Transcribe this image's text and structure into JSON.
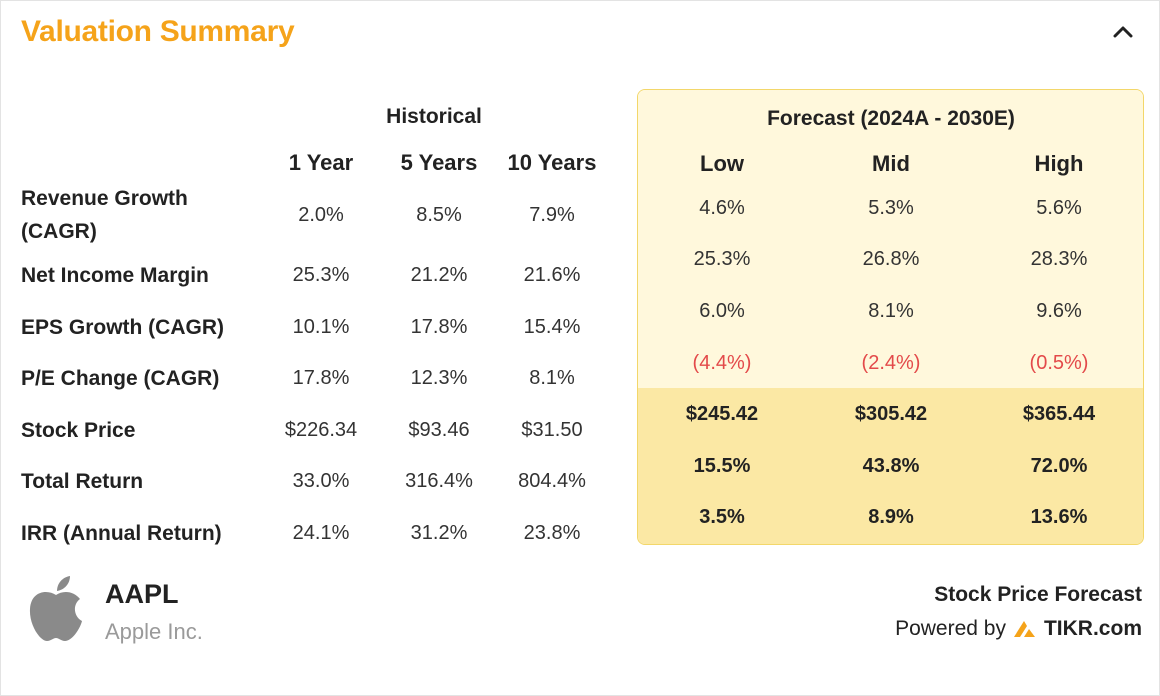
{
  "header": {
    "title": "Valuation Summary"
  },
  "historical": {
    "group_label": "Historical",
    "columns": [
      "1 Year",
      "5 Years",
      "10 Years"
    ]
  },
  "forecast": {
    "group_label": "Forecast (2024A - 2030E)",
    "columns": [
      "Low",
      "Mid",
      "High"
    ]
  },
  "rows": [
    {
      "label_line1": "Revenue Growth",
      "label_line2": "(CAGR)",
      "hist": [
        "2.0%",
        "8.5%",
        "7.9%"
      ],
      "fc": [
        "4.6%",
        "5.3%",
        "5.6%"
      ]
    },
    {
      "label": "Net Income Margin",
      "hist": [
        "25.3%",
        "21.2%",
        "21.6%"
      ],
      "fc": [
        "25.3%",
        "26.8%",
        "28.3%"
      ]
    },
    {
      "label": "EPS Growth (CAGR)",
      "hist": [
        "10.1%",
        "17.8%",
        "15.4%"
      ],
      "fc": [
        "6.0%",
        "8.1%",
        "9.6%"
      ]
    },
    {
      "label": "P/E Change (CAGR)",
      "hist": [
        "17.8%",
        "12.3%",
        "8.1%"
      ],
      "fc": [
        "(4.4%)",
        "(2.4%)",
        "(0.5%)"
      ]
    },
    {
      "label": "Stock Price",
      "hist": [
        "$226.34",
        "$93.46",
        "$31.50"
      ],
      "fc": [
        "$245.42",
        "$305.42",
        "$365.44"
      ]
    },
    {
      "label": "Total Return",
      "hist": [
        "33.0%",
        "316.4%",
        "804.4%"
      ],
      "fc": [
        "15.5%",
        "43.8%",
        "72.0%"
      ]
    },
    {
      "label": "IRR (Annual Return)",
      "hist": [
        "24.1%",
        "31.2%",
        "23.8%"
      ],
      "fc": [
        "3.5%",
        "8.9%",
        "13.6%"
      ]
    }
  ],
  "company": {
    "ticker": "AAPL",
    "name": "Apple Inc."
  },
  "footer": {
    "forecast_label": "Stock Price Forecast",
    "powered_by": "Powered by",
    "brand": "TIKR.com"
  },
  "colors": {
    "accent": "#f5a31a",
    "negative": "#e34a4a",
    "forecast_light": "#fff8dc",
    "forecast_dark": "#fbe8a4"
  }
}
